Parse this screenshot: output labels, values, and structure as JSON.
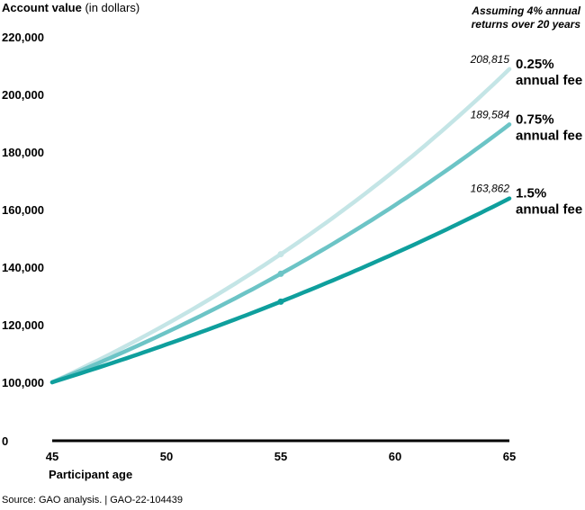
{
  "chart_data": {
    "type": "line",
    "ylabel_bold": "Account value",
    "ylabel_rest": " (in dollars)",
    "xlabel": "Participant age",
    "annotation": [
      "Assuming 4% annual",
      "returns over 20 years"
    ],
    "x": [
      45,
      55,
      65
    ],
    "xticks": [
      "45",
      "50",
      "55",
      "60",
      "65"
    ],
    "xtick_values": [
      45,
      50,
      55,
      60,
      65
    ],
    "yticks": [
      "0",
      "100,000",
      "120,000",
      "140,000",
      "160,000",
      "180,000",
      "200,000",
      "220,000"
    ],
    "ytick_values": [
      0,
      100000,
      120000,
      140000,
      160000,
      180000,
      200000,
      220000
    ],
    "xlim": [
      45,
      65
    ],
    "ylim": [
      0,
      220000
    ],
    "axis_break": "between 0 and 100,000",
    "series": [
      {
        "name": "0.25% annual fee",
        "label_pct": "0.25%",
        "label_rest": "annual fee",
        "color": "#c4e5e6",
        "values": [
          100000,
          144505,
          208815
        ],
        "end_label": "208,815"
      },
      {
        "name": "0.75% annual fee",
        "label_pct": "0.75%",
        "label_rest": "annual fee",
        "color": "#6cc4c6",
        "values": [
          100000,
          137689,
          189584
        ],
        "end_label": "189,584"
      },
      {
        "name": "1.5% annual fee",
        "label_pct": "1.5%",
        "label_rest": "annual fee",
        "color": "#0f9f9d",
        "values": [
          100000,
          128009,
          163862
        ],
        "end_label": "163,862"
      }
    ]
  },
  "source": "Source: GAO analysis.  |  GAO-22-104439"
}
